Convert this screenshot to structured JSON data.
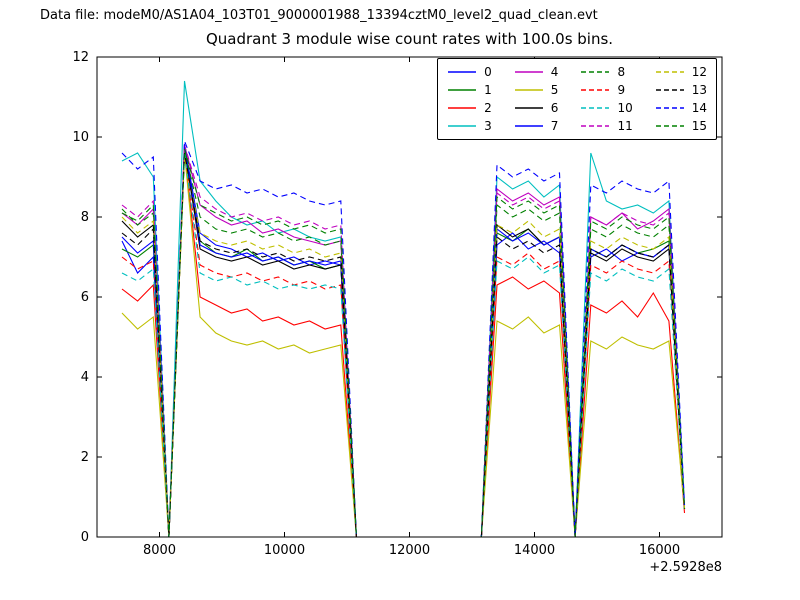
{
  "figure": {
    "datafile_label": "Data file: modeM0/AS1A04_103T01_9000001988_13394cztM0_level2_quad_clean.evt"
  },
  "chart_data": {
    "type": "line",
    "title": "Quadrant 3 module wise count rates with 100.0s bins.",
    "xlabel": "",
    "ylabel": "",
    "xlim": [
      7000,
      17000
    ],
    "ylim": [
      0,
      12
    ],
    "xticks": [
      8000,
      10000,
      12000,
      14000,
      16000
    ],
    "yticks": [
      0,
      2,
      4,
      6,
      8,
      10,
      12
    ],
    "x_offset_label": "+2.5928e8",
    "grid": false,
    "legend_position": "upper right",
    "x": [
      7400,
      7650,
      7900,
      8150,
      8400,
      8650,
      8900,
      9150,
      9400,
      9650,
      9900,
      10150,
      10400,
      10650,
      10900,
      11150,
      11400,
      11650,
      11900,
      12150,
      12400,
      12650,
      12900,
      13150,
      13400,
      13650,
      13900,
      14150,
      14400,
      14650,
      14900,
      15150,
      15400,
      15650,
      15900,
      16150,
      16400
    ],
    "series": [
      {
        "name": "0",
        "color": "#0000ff",
        "dash": false,
        "values": [
          7.4,
          6.6,
          7.0,
          0,
          9.8,
          7.6,
          7.3,
          7.2,
          7.0,
          7.1,
          6.9,
          7.0,
          6.8,
          6.9,
          6.8,
          0,
          0,
          0,
          0,
          0,
          0,
          0,
          0,
          0,
          7.3,
          7.6,
          7.2,
          7.4,
          7.1,
          0,
          7.0,
          7.2,
          6.9,
          7.1,
          7.0,
          7.3,
          0.7
        ]
      },
      {
        "name": "1",
        "color": "#008000",
        "dash": false,
        "values": [
          7.2,
          7.0,
          7.3,
          0,
          9.7,
          7.4,
          7.1,
          7.0,
          7.2,
          6.9,
          7.0,
          6.8,
          6.9,
          6.7,
          6.8,
          0,
          0,
          0,
          0,
          0,
          0,
          0,
          0,
          0,
          7.6,
          7.4,
          7.7,
          7.3,
          7.5,
          0,
          7.2,
          7.0,
          7.3,
          7.1,
          7.2,
          7.4,
          0.7
        ]
      },
      {
        "name": "2",
        "color": "#ff0000",
        "dash": false,
        "values": [
          6.2,
          5.9,
          6.3,
          0,
          9.7,
          6.0,
          5.8,
          5.6,
          5.7,
          5.4,
          5.5,
          5.3,
          5.4,
          5.2,
          5.3,
          0,
          0,
          0,
          0,
          0,
          0,
          0,
          0,
          0,
          6.3,
          6.5,
          6.2,
          6.4,
          6.1,
          0,
          5.8,
          5.6,
          5.9,
          5.5,
          6.1,
          5.4,
          0.6
        ]
      },
      {
        "name": "3",
        "color": "#00bfbf",
        "dash": false,
        "values": [
          9.4,
          9.6,
          9.0,
          0,
          11.4,
          8.9,
          8.4,
          8.0,
          7.8,
          7.9,
          7.6,
          7.7,
          7.5,
          7.4,
          7.5,
          0,
          0,
          0,
          0,
          0,
          0,
          0,
          0,
          0,
          9.0,
          8.7,
          8.9,
          8.5,
          8.8,
          0,
          9.6,
          8.4,
          8.2,
          8.3,
          8.1,
          8.4,
          0.8
        ]
      },
      {
        "name": "4",
        "color": "#bf00bf",
        "dash": false,
        "values": [
          8.1,
          7.8,
          8.2,
          0,
          9.8,
          8.3,
          8.0,
          7.8,
          7.9,
          7.6,
          7.7,
          7.5,
          7.4,
          7.3,
          7.4,
          0,
          0,
          0,
          0,
          0,
          0,
          0,
          0,
          0,
          8.7,
          8.4,
          8.6,
          8.3,
          8.5,
          0,
          8.0,
          7.8,
          8.1,
          7.7,
          7.9,
          8.2,
          0.7
        ]
      },
      {
        "name": "5",
        "color": "#bfbf00",
        "dash": false,
        "values": [
          5.6,
          5.2,
          5.5,
          0,
          9.6,
          5.5,
          5.1,
          4.9,
          4.8,
          4.9,
          4.7,
          4.8,
          4.6,
          4.7,
          4.8,
          0,
          0,
          0,
          0,
          0,
          0,
          0,
          0,
          0,
          5.4,
          5.2,
          5.5,
          5.1,
          5.3,
          0,
          4.9,
          4.7,
          5.0,
          4.8,
          4.7,
          4.9,
          0.7
        ]
      },
      {
        "name": "6",
        "color": "#000000",
        "dash": false,
        "values": [
          7.9,
          7.5,
          7.8,
          0,
          9.7,
          7.2,
          7.0,
          6.9,
          7.0,
          6.8,
          6.9,
          6.7,
          6.8,
          6.7,
          6.8,
          0,
          0,
          0,
          0,
          0,
          0,
          0,
          0,
          0,
          7.8,
          7.5,
          7.7,
          7.3,
          7.5,
          0,
          7.1,
          6.9,
          7.2,
          7.0,
          6.9,
          7.2,
          0.7
        ]
      },
      {
        "name": "7",
        "color": "#0000ff",
        "dash": false,
        "values": [
          7.5,
          7.1,
          7.4,
          0,
          9.8,
          7.3,
          7.1,
          7.0,
          7.1,
          6.9,
          7.0,
          6.8,
          6.9,
          6.8,
          6.9,
          0,
          0,
          0,
          0,
          0,
          0,
          0,
          0,
          0,
          7.7,
          7.4,
          7.6,
          7.3,
          7.5,
          0,
          7.2,
          7.0,
          7.3,
          7.1,
          7.0,
          7.3,
          0.7
        ]
      },
      {
        "name": "8",
        "color": "#008000",
        "dash": true,
        "values": [
          8.2,
          7.8,
          8.1,
          0,
          9.7,
          8.0,
          7.7,
          7.6,
          7.7,
          7.5,
          7.6,
          7.4,
          7.5,
          7.3,
          7.4,
          0,
          0,
          0,
          0,
          0,
          0,
          0,
          0,
          0,
          8.3,
          8.0,
          8.2,
          7.9,
          8.1,
          0,
          7.7,
          7.5,
          7.8,
          7.6,
          7.5,
          7.8,
          0.7
        ]
      },
      {
        "name": "9",
        "color": "#ff0000",
        "dash": true,
        "values": [
          7.0,
          6.7,
          6.9,
          0,
          9.6,
          6.8,
          6.6,
          6.5,
          6.6,
          6.4,
          6.5,
          6.3,
          6.4,
          6.2,
          6.3,
          0,
          0,
          0,
          0,
          0,
          0,
          0,
          0,
          0,
          7.0,
          6.8,
          7.1,
          6.7,
          6.9,
          0,
          6.8,
          6.6,
          6.9,
          6.7,
          6.6,
          6.9,
          0.7
        ]
      },
      {
        "name": "10",
        "color": "#00bfbf",
        "dash": true,
        "values": [
          6.6,
          6.4,
          6.7,
          0,
          9.6,
          6.6,
          6.4,
          6.5,
          6.3,
          6.4,
          6.2,
          6.3,
          6.2,
          6.3,
          6.2,
          0,
          0,
          0,
          0,
          0,
          0,
          0,
          0,
          0,
          6.9,
          6.7,
          7.0,
          6.6,
          6.8,
          0,
          6.6,
          6.4,
          6.7,
          6.5,
          6.4,
          6.7,
          0.7
        ]
      },
      {
        "name": "11",
        "color": "#bf00bf",
        "dash": true,
        "values": [
          8.3,
          8.0,
          8.4,
          0,
          9.8,
          8.5,
          8.2,
          8.0,
          8.1,
          7.9,
          8.0,
          7.8,
          7.9,
          7.7,
          7.8,
          0,
          0,
          0,
          0,
          0,
          0,
          0,
          0,
          0,
          8.6,
          8.3,
          8.5,
          8.2,
          8.4,
          0,
          8.0,
          7.8,
          8.1,
          7.9,
          7.8,
          8.1,
          0.7
        ]
      },
      {
        "name": "12",
        "color": "#bfbf00",
        "dash": true,
        "values": [
          8.0,
          7.6,
          7.9,
          0,
          9.5,
          7.6,
          7.4,
          7.3,
          7.4,
          7.2,
          7.3,
          7.1,
          7.2,
          7.0,
          7.1,
          0,
          0,
          0,
          0,
          0,
          0,
          0,
          0,
          0,
          7.8,
          7.6,
          7.9,
          7.5,
          7.7,
          0,
          7.4,
          7.2,
          7.5,
          7.3,
          7.2,
          7.5,
          0.7
        ]
      },
      {
        "name": "13",
        "color": "#000000",
        "dash": true,
        "values": [
          7.6,
          7.3,
          7.7,
          0,
          9.6,
          7.4,
          7.2,
          7.1,
          7.2,
          7.0,
          7.1,
          6.9,
          7.0,
          6.9,
          7.0,
          0,
          0,
          0,
          0,
          0,
          0,
          0,
          0,
          0,
          7.5,
          7.2,
          7.4,
          7.1,
          7.3,
          0,
          7.2,
          7.0,
          7.3,
          7.1,
          7.0,
          7.3,
          0.7
        ]
      },
      {
        "name": "14",
        "color": "#0000ff",
        "dash": true,
        "values": [
          9.6,
          9.2,
          9.5,
          0,
          9.9,
          8.9,
          8.7,
          8.8,
          8.6,
          8.7,
          8.5,
          8.6,
          8.4,
          8.3,
          8.4,
          0,
          0,
          0,
          0,
          0,
          0,
          0,
          0,
          0,
          9.3,
          9.0,
          9.2,
          8.9,
          9.1,
          0,
          8.8,
          8.6,
          8.9,
          8.7,
          8.6,
          8.9,
          0.8
        ]
      },
      {
        "name": "15",
        "color": "#008000",
        "dash": true,
        "values": [
          8.1,
          7.9,
          8.3,
          0,
          9.7,
          8.3,
          8.1,
          7.9,
          8.0,
          7.8,
          7.9,
          7.7,
          7.8,
          7.6,
          7.7,
          0,
          0,
          0,
          0,
          0,
          0,
          0,
          0,
          0,
          8.5,
          8.2,
          8.4,
          8.1,
          8.3,
          0,
          7.9,
          7.7,
          8.0,
          7.8,
          7.7,
          8.0,
          0.7
        ]
      }
    ]
  }
}
